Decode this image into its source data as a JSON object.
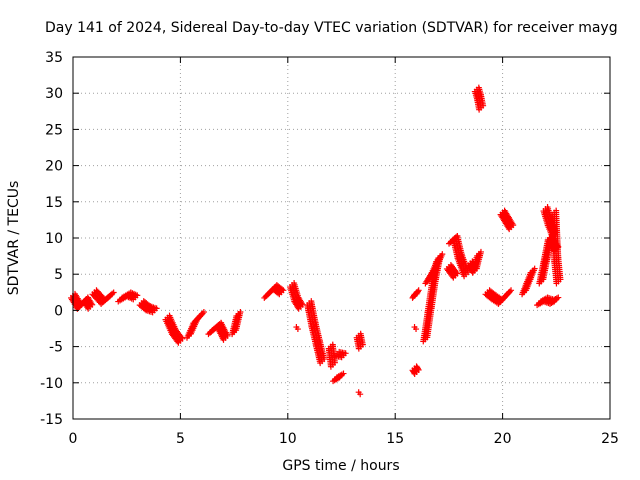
{
  "chart_data": {
    "type": "scatter",
    "title": "Day 141 of 2024, Sidereal Day-to-day VTEC variation (SDTVAR) for receiver mayg",
    "xlabel": "GPS time / hours",
    "ylabel": "SDTVAR / TECUs",
    "xlim": [
      0,
      25
    ],
    "ylim": [
      -15,
      35
    ],
    "xticks": [
      0,
      5,
      10,
      15,
      20,
      25
    ],
    "yticks": [
      -15,
      -10,
      -5,
      0,
      5,
      10,
      15,
      20,
      25,
      30,
      35
    ],
    "xtick_labels": [
      "0",
      "5",
      "10",
      "15",
      "20",
      "25"
    ],
    "ytick_labels": [
      "-15",
      "-10",
      "-5",
      "0",
      "5",
      "10",
      "15",
      "20",
      "25",
      "30",
      "35"
    ],
    "grid": true,
    "marker": "+",
    "color": "#ff0000",
    "segments": [
      {
        "x": [
          0.0,
          0.3,
          0.6,
          0.8
        ],
        "y": [
          2.0,
          0.5,
          1.5,
          0.5
        ]
      },
      {
        "x": [
          1.0,
          1.4,
          1.8
        ],
        "y": [
          2.5,
          1.2,
          2.2
        ]
      },
      {
        "x": [
          2.2,
          2.6,
          2.9
        ],
        "y": [
          1.5,
          2.2,
          1.8
        ]
      },
      {
        "x": [
          3.2,
          3.5,
          3.8
        ],
        "y": [
          1.0,
          0.3,
          0.0
        ]
      },
      {
        "x": [
          4.4,
          4.7,
          5.0
        ],
        "y": [
          -1.0,
          -3.0,
          -4.2
        ]
      },
      {
        "x": [
          5.4,
          5.7,
          6.0
        ],
        "y": [
          -3.5,
          -1.5,
          -0.5
        ]
      },
      {
        "x": [
          6.4,
          6.8,
          7.1
        ],
        "y": [
          -3.0,
          -2.0,
          -3.8
        ]
      },
      {
        "x": [
          7.5,
          7.7
        ],
        "y": [
          -3.0,
          -0.5
        ]
      },
      {
        "x": [
          9.0,
          9.4,
          9.7
        ],
        "y": [
          2.0,
          3.2,
          2.5
        ]
      },
      {
        "x": [
          10.2,
          10.4,
          10.6
        ],
        "y": [
          3.5,
          1.5,
          0.5
        ]
      },
      {
        "x": [
          10.4
        ],
        "y": [
          -2.3
        ]
      },
      {
        "x": [
          11.0,
          11.2,
          11.4,
          11.6
        ],
        "y": [
          1.0,
          -2.0,
          -4.5,
          -7.0
        ]
      },
      {
        "x": [
          12.0,
          12.1
        ],
        "y": [
          -5.0,
          -7.5
        ]
      },
      {
        "x": [
          12.2,
          12.5
        ],
        "y": [
          -9.5,
          -9.0
        ]
      },
      {
        "x": [
          12.3,
          12.6
        ],
        "y": [
          -6.0,
          -6.2
        ]
      },
      {
        "x": [
          13.3,
          13.4
        ],
        "y": [
          -3.5,
          -5.0
        ]
      },
      {
        "x": [
          13.3
        ],
        "y": [
          -11.3
        ]
      },
      {
        "x": [
          15.9,
          16.0
        ],
        "y": [
          2.0,
          2.5
        ]
      },
      {
        "x": [
          15.9
        ],
        "y": [
          -2.3
        ]
      },
      {
        "x": [
          15.9,
          16.0
        ],
        "y": [
          -8.0,
          -8.5
        ]
      },
      {
        "x": [
          16.4,
          16.6,
          16.8,
          17.0
        ],
        "y": [
          -4.0,
          0.0,
          4.0,
          7.0
        ]
      },
      {
        "x": [
          16.5,
          16.8,
          17.1
        ],
        "y": [
          4.0,
          5.5,
          7.5
        ]
      },
      {
        "x": [
          17.6,
          17.8,
          18.0,
          18.3
        ],
        "y": [
          9.5,
          10.0,
          7.5,
          5.0
        ]
      },
      {
        "x": [
          17.5,
          17.8
        ],
        "y": [
          6.0,
          4.8
        ]
      },
      {
        "x": [
          18.5,
          18.7,
          18.9
        ],
        "y": [
          6.5,
          5.5,
          7.8
        ]
      },
      {
        "x": [
          18.8,
          18.9,
          19.0
        ],
        "y": [
          30.5,
          29.5,
          28.0
        ]
      },
      {
        "x": [
          19.3,
          19.6,
          19.9,
          20.3
        ],
        "y": [
          2.5,
          1.8,
          1.2,
          2.5
        ]
      },
      {
        "x": [
          20.0,
          20.2,
          20.4
        ],
        "y": [
          13.5,
          12.5,
          11.5
        ]
      },
      {
        "x": [
          21.0,
          21.2,
          21.4
        ],
        "y": [
          2.5,
          4.0,
          5.5
        ]
      },
      {
        "x": [
          21.7,
          22.0,
          22.3,
          22.5
        ],
        "y": [
          1.0,
          1.5,
          1.2,
          1.5
        ]
      },
      {
        "x": [
          21.8,
          22.0,
          22.2,
          22.5
        ],
        "y": [
          4.0,
          7.0,
          10.0,
          8.5
        ]
      },
      {
        "x": [
          22.0,
          22.2,
          22.4
        ],
        "y": [
          14.0,
          12.0,
          10.5
        ]
      },
      {
        "x": [
          22.4,
          22.5,
          22.6
        ],
        "y": [
          13.5,
          7.0,
          4.0
        ]
      }
    ]
  }
}
